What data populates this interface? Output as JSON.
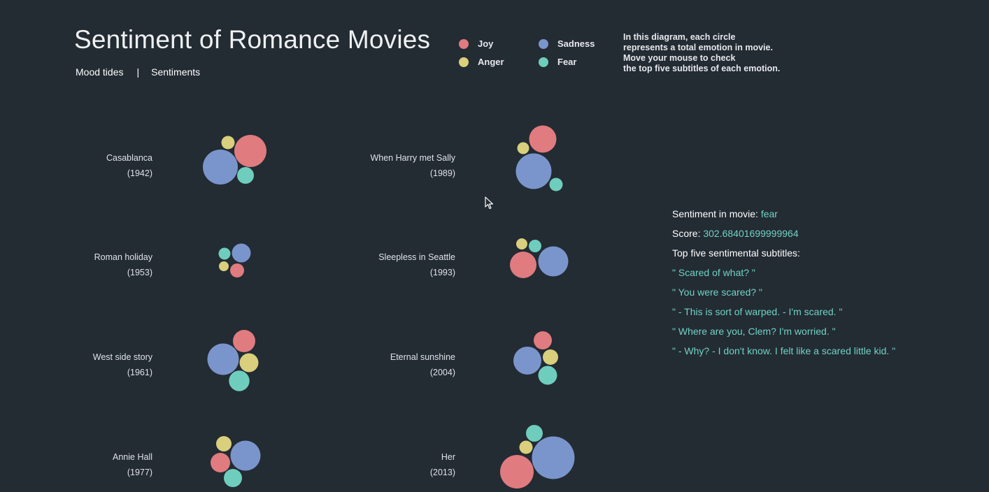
{
  "header": {
    "title": "Sentiment of Romance Movies",
    "nav": [
      {
        "label": "Mood tides"
      },
      {
        "separator": "|"
      },
      {
        "label": "Sentiments"
      }
    ]
  },
  "legend": [
    {
      "label": "Joy",
      "color": "#e07b7f"
    },
    {
      "label": "Sadness",
      "color": "#7a95cc"
    },
    {
      "label": "Anger",
      "color": "#d9cf7c"
    },
    {
      "label": "Fear",
      "color": "#6fcdbd"
    }
  ],
  "note": [
    "In this diagram, each circle",
    "represents a total emotion in movie.",
    "Move your mouse to check",
    "the top five subtitles of each emotion."
  ],
  "movies": [
    {
      "title": "Casablanca",
      "year": "(1942)"
    },
    {
      "title": "When Harry met Sally",
      "year": "(1989)"
    },
    {
      "title": "Roman holiday",
      "year": "(1953)"
    },
    {
      "title": "Sleepless in Seattle",
      "year": "(1993)"
    },
    {
      "title": "West side story",
      "year": "(1961)"
    },
    {
      "title": "Eternal sunshine",
      "year": "(2004)"
    },
    {
      "title": "Annie Hall",
      "year": "(1977)"
    },
    {
      "title": "Her",
      "year": "(2013)"
    }
  ],
  "chart_data": {
    "type": "scatter",
    "title": "Sentiment of Romance Movies",
    "encoding": "bubble area proportional to total emotion score",
    "emotions": [
      "Joy",
      "Sadness",
      "Anger",
      "Fear"
    ],
    "colors": {
      "Joy": "#e07b7f",
      "Sadness": "#7a95cc",
      "Anger": "#d9cf7c",
      "Fear": "#6fcdbd"
    },
    "series": [
      {
        "movie": "Casablanca",
        "values": {
          "Joy": 529,
          "Sadness": 625,
          "Anger": 90,
          "Fear": 144
        }
      },
      {
        "movie": "When Harry met Sally",
        "values": {
          "Joy": 380,
          "Sadness": 650,
          "Anger": 72,
          "Fear": 90
        }
      },
      {
        "movie": "Roman holiday",
        "values": {
          "Joy": 100,
          "Sadness": 182,
          "Anger": 49,
          "Fear": 72
        }
      },
      {
        "movie": "Sleepless in Seattle",
        "values": {
          "Joy": 361,
          "Sadness": 462,
          "Anger": 64,
          "Fear": 81
        }
      },
      {
        "movie": "West side story",
        "values": {
          "Joy": 256,
          "Sadness": 506,
          "Anger": 182,
          "Fear": 216
        }
      },
      {
        "movie": "Eternal sunshine",
        "values": {
          "Joy": 169,
          "Sadness": 400,
          "Anger": 121,
          "Fear": 182
        }
      },
      {
        "movie": "Annie Hall",
        "values": {
          "Joy": 196,
          "Sadness": 462,
          "Anger": 121,
          "Fear": 169
        }
      },
      {
        "movie": "Her",
        "values": {
          "Joy": 576,
          "Sadness": 930,
          "Anger": 90,
          "Fear": 144
        }
      }
    ]
  },
  "info": {
    "sentiment_label": "Sentiment in movie: ",
    "sentiment_value": "fear",
    "score_label": "Score: ",
    "score_value": "302.68401699999964",
    "subtitles_label": "Top five sentimental subtitles:",
    "subtitles": [
      "\" Scared of what? \"",
      "\" You were scared? \"",
      "\" - This is sort of warped. - I'm scared. \"",
      "\" Where are you, Clem? I'm worried. \"",
      "\" - Why? - I don't know. I felt like a scared little kid. \""
    ]
  }
}
